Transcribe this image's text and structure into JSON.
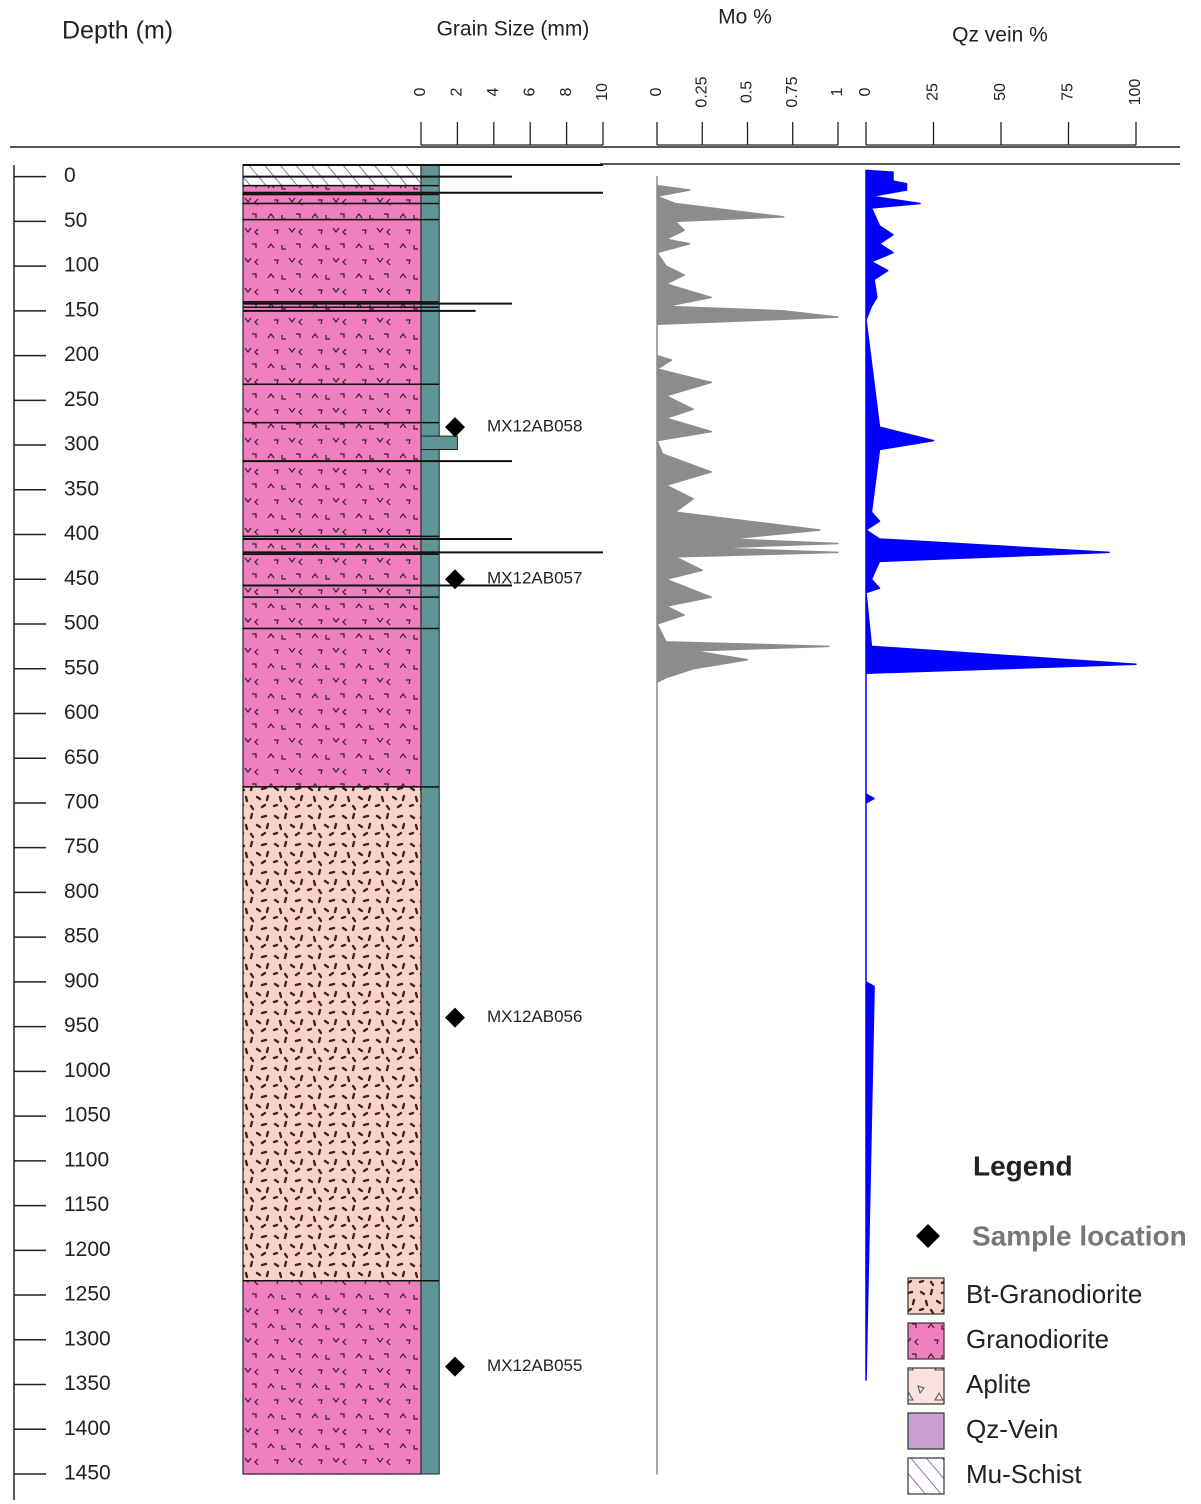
{
  "chart_data": {
    "type": "strip-log",
    "depth_axis": {
      "label": "Depth (m)",
      "lim": [
        -13,
        1450
      ],
      "ticks": [
        0,
        50,
        100,
        150,
        200,
        250,
        300,
        350,
        400,
        450,
        500,
        550,
        600,
        650,
        700,
        750,
        800,
        850,
        900,
        950,
        1000,
        1050,
        1100,
        1150,
        1200,
        1250,
        1300,
        1350,
        1400,
        1450
      ]
    },
    "lithology": [
      {
        "from": -13,
        "to": 10,
        "rock": "Mu-Schist"
      },
      {
        "from": 10,
        "to": 20,
        "rock": "Granodiorite"
      },
      {
        "from": 20,
        "to": 30,
        "rock": "Granodiorite"
      },
      {
        "from": 30,
        "to": 48,
        "rock": "Granodiorite"
      },
      {
        "from": 48,
        "to": 140,
        "rock": "Granodiorite"
      },
      {
        "from": 140,
        "to": 146,
        "rock": "Granodiorite"
      },
      {
        "from": 146,
        "to": 232,
        "rock": "Granodiorite"
      },
      {
        "from": 232,
        "to": 275,
        "rock": "Granodiorite"
      },
      {
        "from": 275,
        "to": 318,
        "rock": "Granodiorite"
      },
      {
        "from": 318,
        "to": 402,
        "rock": "Granodiorite"
      },
      {
        "from": 402,
        "to": 422,
        "rock": "Granodiorite"
      },
      {
        "from": 422,
        "to": 470,
        "rock": "Granodiorite"
      },
      {
        "from": 470,
        "to": 505,
        "rock": "Granodiorite"
      },
      {
        "from": 505,
        "to": 682,
        "rock": "Granodiorite"
      },
      {
        "from": 682,
        "to": 1234,
        "rock": "Bt-Granodiorite"
      },
      {
        "from": 1234,
        "to": 1450,
        "rock": "Granodiorite"
      }
    ],
    "grain_size": {
      "label": "Grain Size (mm)",
      "xlim": [
        0,
        10
      ],
      "xticks": [
        0,
        2,
        4,
        6,
        8,
        10
      ],
      "color": "#5f9595",
      "intervals": [
        {
          "from": -13,
          "to": 1450,
          "value": 1
        },
        {
          "from": 290,
          "to": 305,
          "value": 2
        }
      ],
      "spikes": {
        "depths": [
          -13,
          0,
          18,
          142,
          150,
          318,
          405,
          420,
          457
        ],
        "values": [
          10,
          5,
          10,
          5,
          3,
          5,
          5,
          10,
          5
        ]
      }
    },
    "mo": {
      "label": "Mo %",
      "xlim": [
        0,
        1
      ],
      "xticks": [
        0,
        0.25,
        0.5,
        0.75,
        1
      ],
      "color": "#8c8c8c",
      "depths": [
        0,
        10,
        15,
        22,
        30,
        45,
        50,
        60,
        70,
        75,
        85,
        100,
        110,
        120,
        135,
        145,
        150,
        157,
        165,
        200,
        205,
        215,
        230,
        245,
        260,
        270,
        285,
        295,
        310,
        330,
        345,
        360,
        375,
        385,
        395,
        405,
        410,
        415,
        420,
        425,
        440,
        450,
        470,
        480,
        490,
        500,
        520,
        525,
        530,
        540,
        550,
        560,
        565,
        1450
      ],
      "values": [
        0,
        0,
        0.18,
        0,
        0.1,
        0.7,
        0.1,
        0.15,
        0.05,
        0.18,
        0,
        0.05,
        0.15,
        0.05,
        0.3,
        0.05,
        0.7,
        1,
        0,
        0,
        0.08,
        0,
        0.3,
        0.05,
        0.2,
        0.05,
        0.3,
        0,
        0.03,
        0.3,
        0.05,
        0.2,
        0.1,
        0.5,
        0.9,
        0.4,
        1,
        0.3,
        1,
        0.1,
        0.25,
        0.05,
        0.3,
        0.05,
        0.15,
        0,
        0.05,
        0.95,
        0.2,
        0.5,
        0.2,
        0.05,
        0,
        0
      ]
    },
    "qz": {
      "label": "Qz vein %",
      "xlim": [
        0,
        100
      ],
      "xticks": [
        0,
        25,
        50,
        75,
        100
      ],
      "color": "#0000ff",
      "depths": [
        -7,
        -5,
        5,
        8,
        15,
        22,
        30,
        35,
        55,
        65,
        75,
        85,
        95,
        105,
        115,
        135,
        145,
        160,
        280,
        295,
        305,
        375,
        385,
        395,
        405,
        420,
        430,
        450,
        460,
        465,
        525,
        545,
        555,
        690,
        695,
        700,
        900,
        905,
        1345
      ],
      "values": [
        0,
        10,
        10,
        15,
        15,
        2,
        20,
        2,
        5,
        10,
        5,
        10,
        2,
        8,
        3,
        4,
        2,
        0,
        5,
        25,
        5,
        2,
        5,
        0,
        5,
        90,
        5,
        2,
        5,
        0,
        2,
        100,
        0,
        0,
        3,
        0,
        0,
        3,
        0
      ]
    },
    "samples": {
      "depths": [
        280,
        450,
        940,
        1330
      ],
      "labels": [
        "MX12AB058",
        "MX12AB057",
        "MX12AB056",
        "MX12AB055"
      ]
    },
    "legend": {
      "title": "Legend",
      "sample_label": "Sample location",
      "items": [
        {
          "name": "Bt-Granodiorite",
          "color": "#f7d3cc"
        },
        {
          "name": "Granodiorite",
          "color": "#f07fbf"
        },
        {
          "name": "Aplite",
          "color": "#f9e2de"
        },
        {
          "name": "Qz-Vein",
          "color": "#c99fd0"
        },
        {
          "name": "Mu-Schist",
          "color": "#ffffff"
        }
      ]
    }
  }
}
